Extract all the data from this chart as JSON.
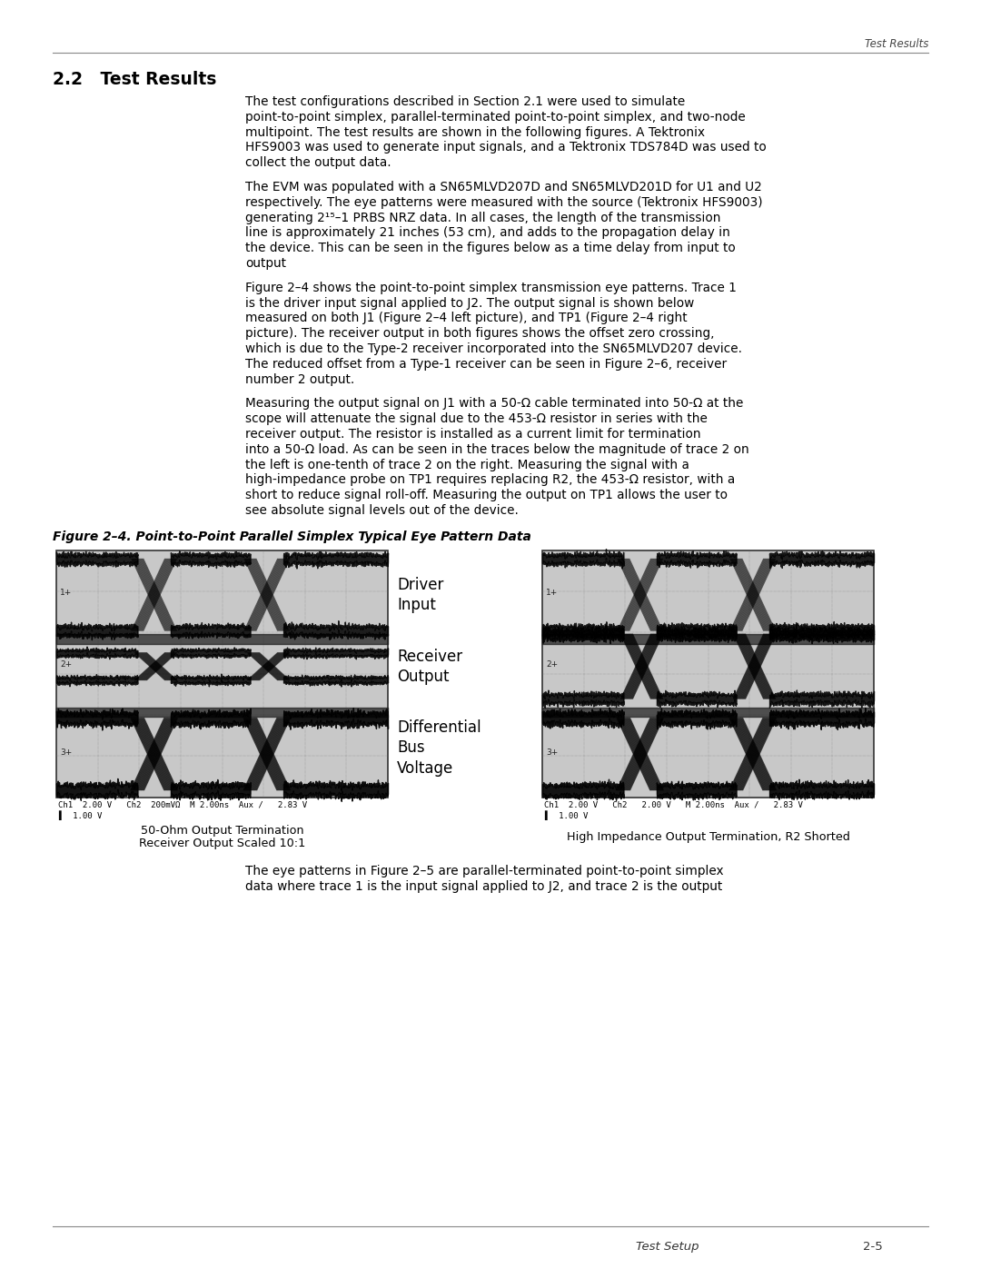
{
  "page_title_right": "Test Results",
  "section_header": "2.2   Test Results",
  "body_paragraphs": [
    "The test configurations described in Section 2.1 were used to simulate point-to-point simplex, parallel-terminated point-to-point simplex, and two-node multipoint. The test results are shown in the following figures. A Tektronix HFS9003 was used to generate input signals, and a Tektronix TDS784D was used to collect the output data.",
    "The EVM was populated with a SN65MLVD207D and SN65MLVD201D for U1 and U2 respectively. The eye patterns were measured with the source (Tektronix HFS9003) generating 2¹⁵–1 PRBS NRZ data. In all cases, the length of the transmission line is approximately 21 inches (53 cm), and adds to the propagation delay in the device. This can be seen in the figures below as a time delay from input to output",
    "Figure 2–4 shows the point-to-point simplex transmission eye patterns. Trace 1 is the driver input signal applied to J2. The output signal is shown below measured on both J1 (Figure 2–4 left picture), and TP1 (Figure 2–4 right picture). The receiver output in both figures shows the offset zero crossing, which is due to the Type-2 receiver incorporated into the SN65MLVD207 device. The reduced offset from a Type-1 receiver can be seen in Figure 2–6, receiver number 2 output.",
    "Measuring the output signal on J1 with a 50-Ω cable terminated into 50-Ω at the scope will attenuate the signal due to the 453-Ω resistor in series with the receiver output. The resistor is installed as a current limit for termination into a 50-Ω load. As can be seen in the traces below the magnitude of trace 2 on the left is one-tenth of trace 2 on the right. Measuring the signal with a high-impedance probe on TP1 requires replacing R2, the 453-Ω resistor, with a short to reduce signal roll-off. Measuring the output on TP1 allows the user to see absolute signal levels out of the device."
  ],
  "figure_caption": "Figure 2–4. Point-to-Point Parallel Simplex Typical Eye Pattern Data",
  "channel_labels": [
    "Driver\nInput",
    "Receiver\nOutput",
    "Differential\nBus\nVoltage"
  ],
  "left_caption_line1": "50-Ohm Output Termination",
  "left_caption_line2": "Receiver Output Scaled 10:1",
  "right_caption": "High Impedance Output Termination, R2 Shorted",
  "left_scope_status": "Ch1  2.00 V   Ch2  200mVΩ  M 2.00ns  Aux /   2.83 V",
  "left_scope_status2": "▌  1.00 V",
  "right_scope_status": "Ch1  2.00 V   Ch2   2.00 V   M 2.00ns  Aux /   2.83 V",
  "right_scope_status2": "▌  1.00 V",
  "bottom_text_line1": "The eye patterns in Figure 2–5 are parallel-terminated point-to-point simplex",
  "bottom_text_line2": "data where trace 1 is the input signal applied to J2, and trace 2 is the output",
  "footer_left": "Test Setup",
  "footer_right": "2-5",
  "bg_color": "#ffffff",
  "text_color": "#000000",
  "header_line_color": "#888888",
  "scope_bg": "#c8c8c8",
  "scope_grid_color": "#888888",
  "scope_border_color": "#333333",
  "scope_trace_color": "#000000",
  "scope_marker_color": "#404040"
}
